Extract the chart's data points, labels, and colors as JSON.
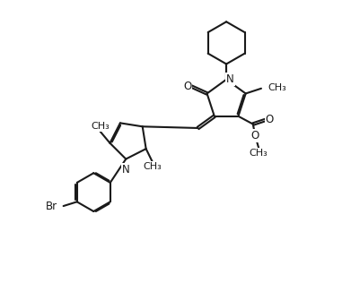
{
  "bg_color": "#ffffff",
  "line_color": "#1a1a1a",
  "line_width": 1.5,
  "font_size": 8.5,
  "fig_width": 3.91,
  "fig_height": 3.16,
  "dpi": 100,
  "xlim": [
    0,
    10
  ],
  "ylim": [
    0,
    10
  ]
}
